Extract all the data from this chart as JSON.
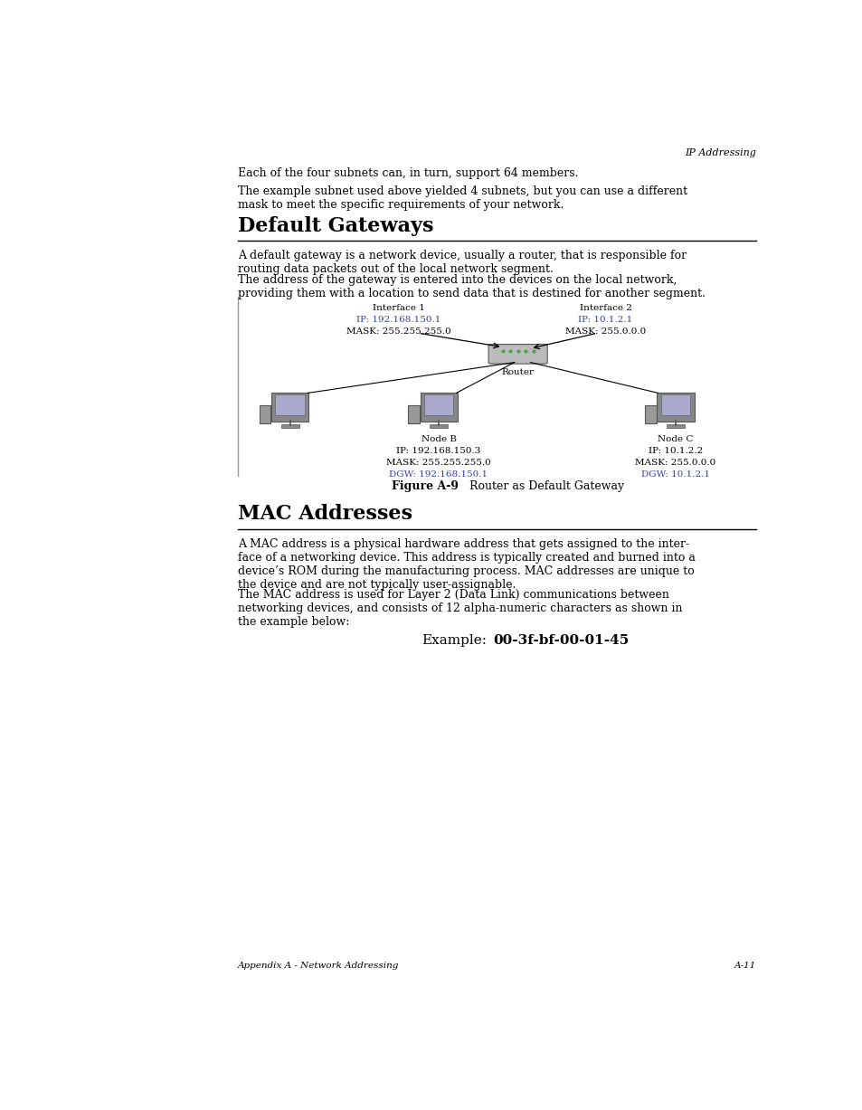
{
  "bg_color": "#ffffff",
  "page_width": 9.54,
  "page_height": 12.27,
  "header_right": "IP Addressing",
  "para1": "Each of the four subnets can, in turn, support 64 members.",
  "para2": "The example subnet used above yielded 4 subnets, but you can use a different\nmask to meet the specific requirements of your network.",
  "section1_title": "Default Gateways",
  "section1_para1": "A default gateway is a network device, usually a router, that is responsible for\nrouting data packets out of the local network segment.",
  "section1_para2": "The address of the gateway is entered into the devices on the local network,\nproviding them with a location to send data that is destined for another segment.",
  "figure_caption_bold": "Figure A-9",
  "figure_caption_rest": "   Router as Default Gateway",
  "section2_title": "MAC Addresses",
  "section2_para1": "A MAC address is a physical hardware address that gets assigned to the inter-\nface of a networking device. This address is typically created and burned into a\ndevice’s ROM during the manufacturing process. MAC addresses are unique to\nthe device and are not typically user-assignable.",
  "section2_para2": "The MAC address is used for Layer 2 (Data Link) communications between\nnetworking devices, and consists of 12 alpha-numeric characters as shown in\nthe example below:",
  "example_label": "Example:",
  "example_value": "00-3f-bf-00-01-45",
  "footer_left": "Appendix A - Network Addressing",
  "footer_right": "A-11",
  "blue_color": "#3344aa",
  "black_color": "#000000",
  "gray_color": "#555555",
  "router_color": "#bbbbbb",
  "green_color": "#44aa44",
  "monitor_face_color": "#888888",
  "screen_color": "#aaaacc",
  "line_color": "#999999"
}
